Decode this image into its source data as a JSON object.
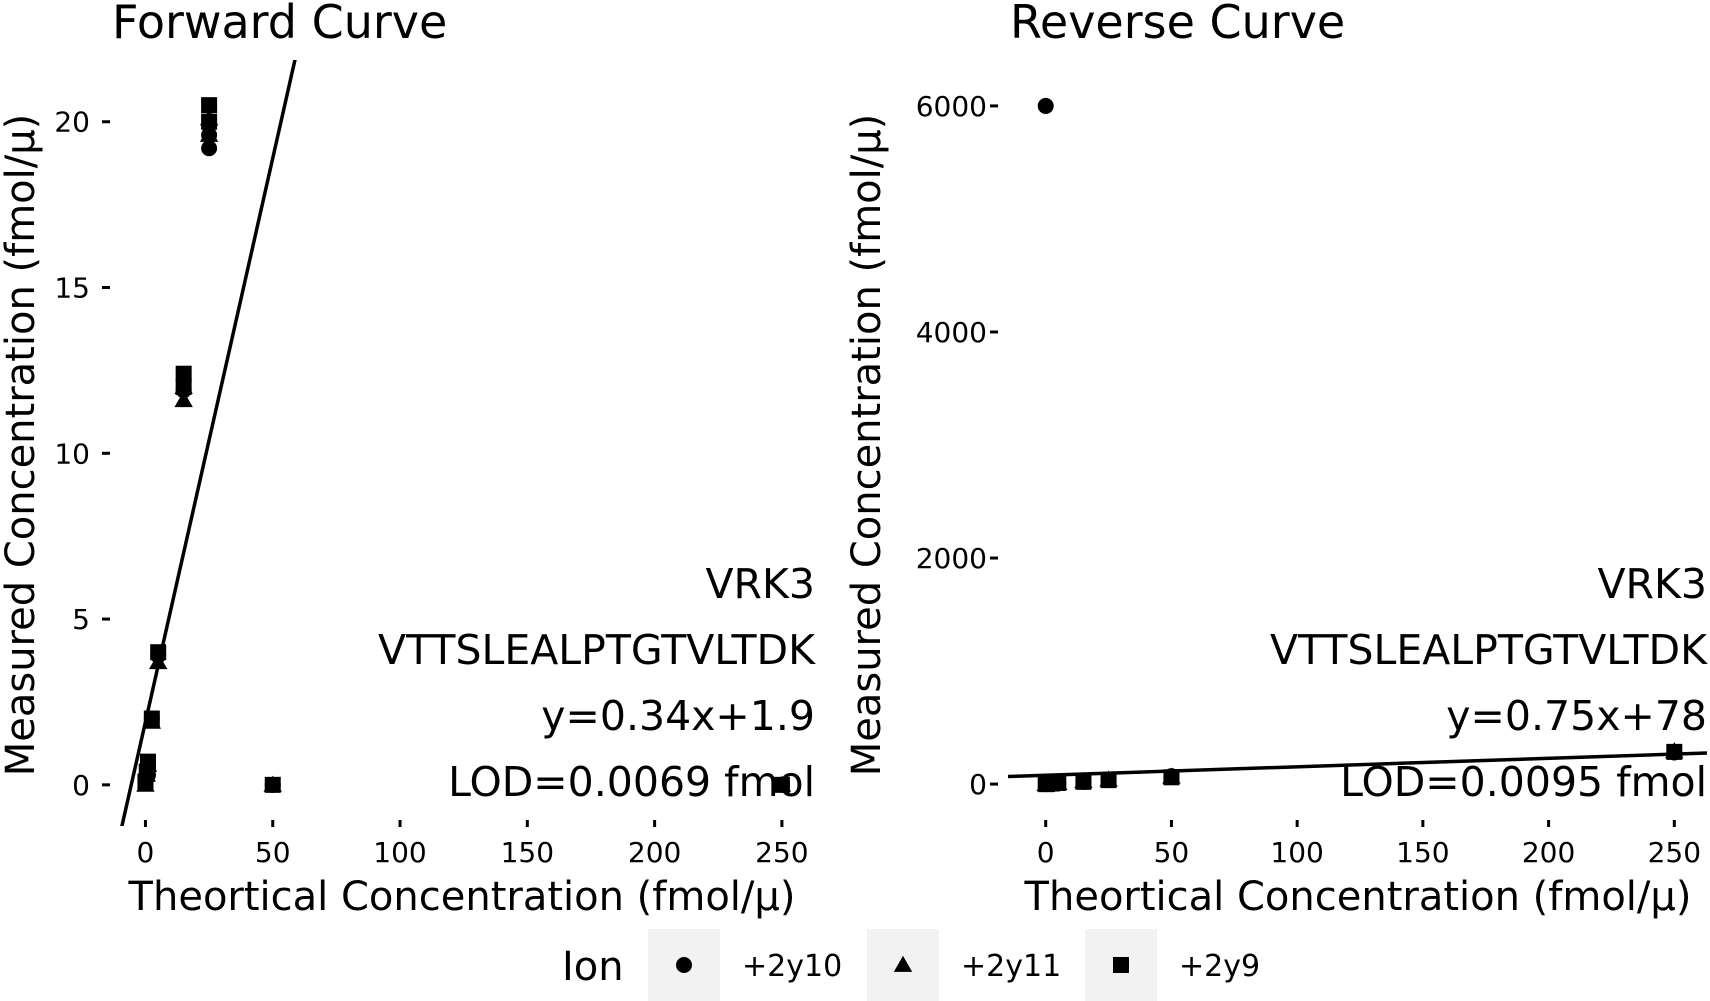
{
  "chart_data": [
    {
      "type": "scatter",
      "title": "Forward Curve",
      "xlabel": "Theortical Concentration (fmol/µ)",
      "ylabel": "Measured Concentration (fmol/µ)",
      "xlim": [
        -10,
        263
      ],
      "ylim": [
        -1.0,
        21.5
      ],
      "xticks": [
        0,
        50,
        100,
        150,
        200,
        250
      ],
      "yticks": [
        0,
        5,
        10,
        15,
        20
      ],
      "xtick_labels": [
        "0",
        "50",
        "100",
        "150",
        "200",
        "250"
      ],
      "ytick_labels": [
        "0",
        "5",
        "10",
        "15",
        "20"
      ],
      "grid": false,
      "annotation": [
        "VRK3",
        "VTTSLEALPTGTVLTDK",
        "y=0.34x+1.9",
        "LOD=0.0069 fmol"
      ],
      "fit_line": {
        "slope": 0.34,
        "intercept": 1.9
      },
      "series": [
        {
          "name": "+2y10",
          "shape": "circle",
          "x": [
            0,
            0.5,
            1,
            2.5,
            5,
            15,
            25,
            25,
            50,
            250
          ],
          "y": [
            0.05,
            0.2,
            0.3,
            2.0,
            3.9,
            11.9,
            19.2,
            19.6,
            0.0,
            0.0
          ]
        },
        {
          "name": "+2y11",
          "shape": "triangle",
          "x": [
            0,
            0.5,
            1,
            2.5,
            5,
            15,
            15,
            25,
            25,
            50,
            250
          ],
          "y": [
            0.0,
            0.3,
            0.6,
            1.9,
            3.7,
            11.6,
            12.0,
            19.6,
            20.1,
            0.0,
            0.0
          ]
        },
        {
          "name": "+2y9",
          "shape": "square",
          "x": [
            0,
            0.5,
            1,
            2.5,
            5,
            15,
            15,
            25,
            25,
            50,
            250
          ],
          "y": [
            0.1,
            0.4,
            0.7,
            2.0,
            4.0,
            12.0,
            12.4,
            20.0,
            20.5,
            0.0,
            0.0
          ]
        }
      ]
    },
    {
      "type": "scatter",
      "title": "Reverse Curve",
      "xlabel": "Theortical Concentration (fmol/µ)",
      "ylabel": "Measured Concentration (fmol/µ)",
      "xlim": [
        -15,
        263
      ],
      "ylim": [
        -300,
        6300
      ],
      "xticks": [
        0,
        50,
        100,
        150,
        200,
        250
      ],
      "yticks": [
        0,
        2000,
        4000,
        6000
      ],
      "xtick_labels": [
        "0",
        "50",
        "100",
        "150",
        "200",
        "250"
      ],
      "ytick_labels": [
        "0",
        "2000",
        "4000",
        "6000"
      ],
      "grid": false,
      "annotation": [
        "VRK3",
        "VTTSLEALPTGTVLTDK",
        "y=0.75x+78",
        "LOD=0.0095 fmol"
      ],
      "fit_line": {
        "slope": 0.75,
        "intercept": 78
      },
      "series": [
        {
          "name": "+2y10",
          "shape": "circle",
          "x": [
            0,
            0.5,
            2.5,
            5,
            15,
            25,
            50,
            250
          ],
          "y": [
            6000,
            0,
            5,
            10,
            20,
            40,
            70,
            280
          ]
        },
        {
          "name": "+2y11",
          "shape": "triangle",
          "x": [
            0,
            0.5,
            2.5,
            5,
            15,
            25,
            50,
            250
          ],
          "y": [
            0,
            0,
            5,
            10,
            25,
            40,
            65,
            290
          ]
        },
        {
          "name": "+2y9",
          "shape": "square",
          "x": [
            0,
            0.5,
            2.5,
            5,
            15,
            25,
            50,
            250
          ],
          "y": [
            0,
            0,
            5,
            10,
            20,
            35,
            60,
            285
          ]
        }
      ]
    }
  ],
  "legend": {
    "title": "Ion",
    "entries": [
      {
        "label": "+2y10",
        "shape": "circle"
      },
      {
        "label": "+2y11",
        "shape": "triangle"
      },
      {
        "label": "+2y9",
        "shape": "square"
      }
    ],
    "key_background": "#f2f2f2"
  }
}
